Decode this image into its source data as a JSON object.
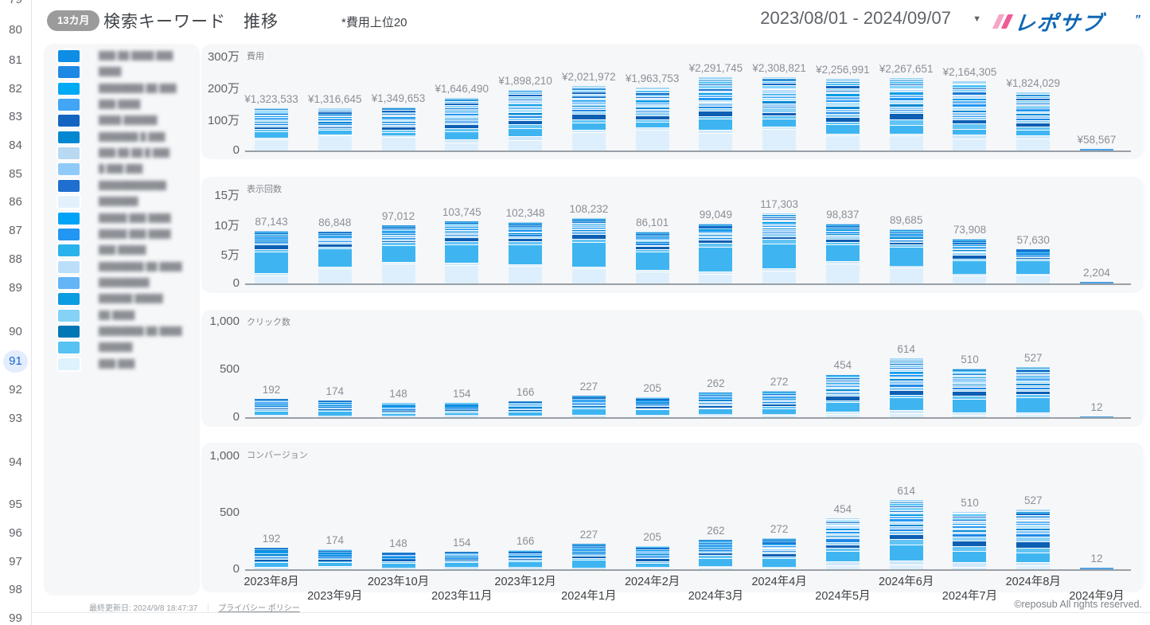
{
  "nav": {
    "pages": [
      "79",
      "80",
      "81",
      "82",
      "83",
      "84",
      "85",
      "86",
      "87",
      "88",
      "89",
      "90",
      "91",
      "92",
      "93",
      "94",
      "95",
      "96",
      "97",
      "98",
      "99"
    ],
    "selected": "91"
  },
  "header": {
    "badge": "13カ月",
    "title": "検索キーワード　推移",
    "subtitle": "*費用上位20",
    "date_range": "2023/08/01 - 2024/09/07",
    "logo_text": "レポサブ",
    "logo_tick": "”"
  },
  "icons": {
    "chevron_down": "▼"
  },
  "legend": {
    "items": [
      {
        "color": "#0d8de3",
        "label_mask": "███ ██ ████ ███"
      },
      {
        "color": "#1e88e5",
        "label_mask": "████"
      },
      {
        "color": "#00a9f4",
        "label_mask": "████████ ██ ███"
      },
      {
        "color": "#42a5f5",
        "label_mask": "███ ████"
      },
      {
        "color": "#1565c0",
        "label_mask": "████ ██████"
      },
      {
        "color": "#0288d1",
        "label_mask": "███████ █ ███"
      },
      {
        "color": "#b9d8f2",
        "label_mask": "███ ██ ██ █ ███"
      },
      {
        "color": "#90caf9",
        "label_mask": "█ ███ ███"
      },
      {
        "color": "#1e6fd0",
        "label_mask": "████████████"
      },
      {
        "color": "#e3f1fc",
        "label_mask": "███████"
      },
      {
        "color": "#00a3f5",
        "label_mask": "█████ ███ ████"
      },
      {
        "color": "#2196f3",
        "label_mask": "█████ ███ ████"
      },
      {
        "color": "#2ab2ec",
        "label_mask": "███ █████"
      },
      {
        "color": "#bbdffb",
        "label_mask": "████████ ██ ████"
      },
      {
        "color": "#64b5f6",
        "label_mask": "█████████"
      },
      {
        "color": "#0c9ce2",
        "label_mask": "██████ █████"
      },
      {
        "color": "#84d2f6",
        "label_mask": "██ ████"
      },
      {
        "color": "#0277b5",
        "label_mask": "████████ ██ ████"
      },
      {
        "color": "#58c2f2",
        "label_mask": "██████"
      },
      {
        "color": "#def2fd",
        "label_mask": "███ ███"
      }
    ]
  },
  "chart_data": [
    {
      "type": "bar",
      "stacked": true,
      "title": "費用",
      "categories": [
        "2023年8月",
        "2023年9月",
        "2023年10月",
        "2023年11月",
        "2023年12月",
        "2024年1月",
        "2024年2月",
        "2024年3月",
        "2024年4月",
        "2024年5月",
        "2024年6月",
        "2024年7月",
        "2024年8月",
        "2024年9月"
      ],
      "values": [
        1323533,
        1316645,
        1349653,
        1646490,
        1898210,
        2021972,
        1963753,
        2291745,
        2308821,
        2256991,
        2267651,
        2164305,
        1824029,
        58567
      ],
      "value_labels": [
        "¥1,323,533",
        "¥1,316,645",
        "¥1,349,653",
        "¥1,646,490",
        "¥1,898,210",
        "¥2,021,972",
        "¥1,963,753",
        "¥2,291,745",
        "¥2,308,821",
        "¥2,256,991",
        "¥2,267,651",
        "¥2,164,305",
        "¥1,824,029",
        "¥58,567"
      ],
      "y_ticks": [
        "0",
        "100万",
        "200万",
        "300万"
      ],
      "tick_unit": 1000000,
      "ylim": [
        0,
        3000000
      ],
      "show_x_labels": false,
      "legend_position": "left",
      "grid": false
    },
    {
      "type": "bar",
      "stacked": true,
      "title": "表示回数",
      "categories": [
        "2023年8月",
        "2023年9月",
        "2023年10月",
        "2023年11月",
        "2023年12月",
        "2024年1月",
        "2024年2月",
        "2024年3月",
        "2024年4月",
        "2024年5月",
        "2024年6月",
        "2024年7月",
        "2024年8月",
        "2024年9月"
      ],
      "values": [
        87143,
        86848,
        97012,
        103745,
        102348,
        108232,
        86101,
        99049,
        117303,
        98837,
        89685,
        73908,
        57630,
        2204
      ],
      "value_labels": [
        "87,143",
        "86,848",
        "97,012",
        "103,745",
        "102,348",
        "108,232",
        "86,101",
        "99,049",
        "117,303",
        "98,837",
        "89,685",
        "73,908",
        "57,630",
        "2,204"
      ],
      "y_ticks": [
        "0",
        "5万",
        "10万",
        "15万"
      ],
      "tick_unit": 50000,
      "ylim": [
        0,
        150000
      ],
      "show_x_labels": false,
      "legend_position": "left",
      "grid": false
    },
    {
      "type": "bar",
      "stacked": true,
      "title": "クリック数",
      "categories": [
        "2023年8月",
        "2023年9月",
        "2023年10月",
        "2023年11月",
        "2023年12月",
        "2024年1月",
        "2024年2月",
        "2024年3月",
        "2024年4月",
        "2024年5月",
        "2024年6月",
        "2024年7月",
        "2024年8月",
        "2024年9月"
      ],
      "values": [
        192,
        174,
        148,
        154,
        166,
        227,
        205,
        262,
        272,
        454,
        614,
        510,
        527,
        12
      ],
      "value_labels": [
        "192",
        "174",
        "148",
        "154",
        "166",
        "227",
        "205",
        "262",
        "272",
        "454",
        "614",
        "510",
        "527",
        "12"
      ],
      "y_ticks": [
        "0",
        "500",
        "1,000"
      ],
      "tick_unit": 500,
      "ylim": [
        0,
        1000
      ],
      "show_x_labels": false,
      "legend_position": "left",
      "grid": false
    },
    {
      "type": "bar",
      "stacked": true,
      "title": "コンバージョン",
      "categories": [
        "2023年8月",
        "2023年9月",
        "2023年10月",
        "2023年11月",
        "2023年12月",
        "2024年1月",
        "2024年2月",
        "2024年3月",
        "2024年4月",
        "2024年5月",
        "2024年6月",
        "2024年7月",
        "2024年8月",
        "2024年9月"
      ],
      "values": [
        192,
        174,
        148,
        154,
        166,
        227,
        205,
        262,
        272,
        454,
        614,
        510,
        527,
        12
      ],
      "value_labels": [
        "192",
        "174",
        "148",
        "154",
        "166",
        "227",
        "205",
        "262",
        "272",
        "454",
        "614",
        "510",
        "527",
        "12"
      ],
      "y_ticks": [
        "0",
        "500",
        "1,000"
      ],
      "tick_unit": 500,
      "ylim": [
        0,
        1000
      ],
      "show_x_labels": true,
      "legend_position": "left",
      "grid": false
    }
  ],
  "stack": {
    "note": "per-keyword split estimated from pixels; keyword labels are blurred in source",
    "colors_bottom_to_top": [
      "#ddeffc",
      "#cfe8fa",
      "#3eb5f1",
      "#62c4f4",
      "#0d5fb4",
      "#8ed2f6",
      "#1e88e5",
      "#90caf9",
      "#0288d1",
      "#b3e2fc",
      "#2196f3",
      "#64b5f6",
      "#039be5",
      "#bbdefb",
      "#1976d2",
      "#81d4fa",
      "#1565c0",
      "#4fc3f7",
      "#2a91d8",
      "#a6d9f7"
    ],
    "weights": [
      [
        24,
        4,
        11,
        5,
        7,
        3.5,
        3,
        3,
        3,
        3,
        3,
        2.8,
        2.8,
        2.8,
        2.8,
        2.8,
        2.8,
        2.8,
        2.8,
        2
      ],
      [
        26,
        3,
        32,
        5,
        6,
        3,
        2.5,
        2.5,
        2,
        2,
        2,
        2,
        2,
        1.5,
        1.5,
        1.5,
        1.5,
        1.5,
        1.5,
        1
      ],
      [
        6,
        5,
        24,
        7,
        9,
        5,
        4.5,
        4,
        4,
        4,
        3.5,
        3.5,
        3,
        3,
        3,
        3,
        3,
        2.5,
        2.5,
        2
      ],
      [
        6,
        5,
        24,
        7,
        9,
        5,
        4.5,
        4,
        4,
        4,
        3.5,
        3.5,
        3,
        3,
        3,
        3,
        3,
        2.5,
        2.5,
        2
      ]
    ],
    "seed": 42,
    "jitter": 0.9,
    "tiny_bar_color": "#4da3e8"
  },
  "footer": {
    "updated": "最終更新日: 2024/9/8 18:47:37",
    "separator": "｜",
    "privacy": "プライバシー ポリシー",
    "copyright": "©reposub All rights reserved."
  }
}
